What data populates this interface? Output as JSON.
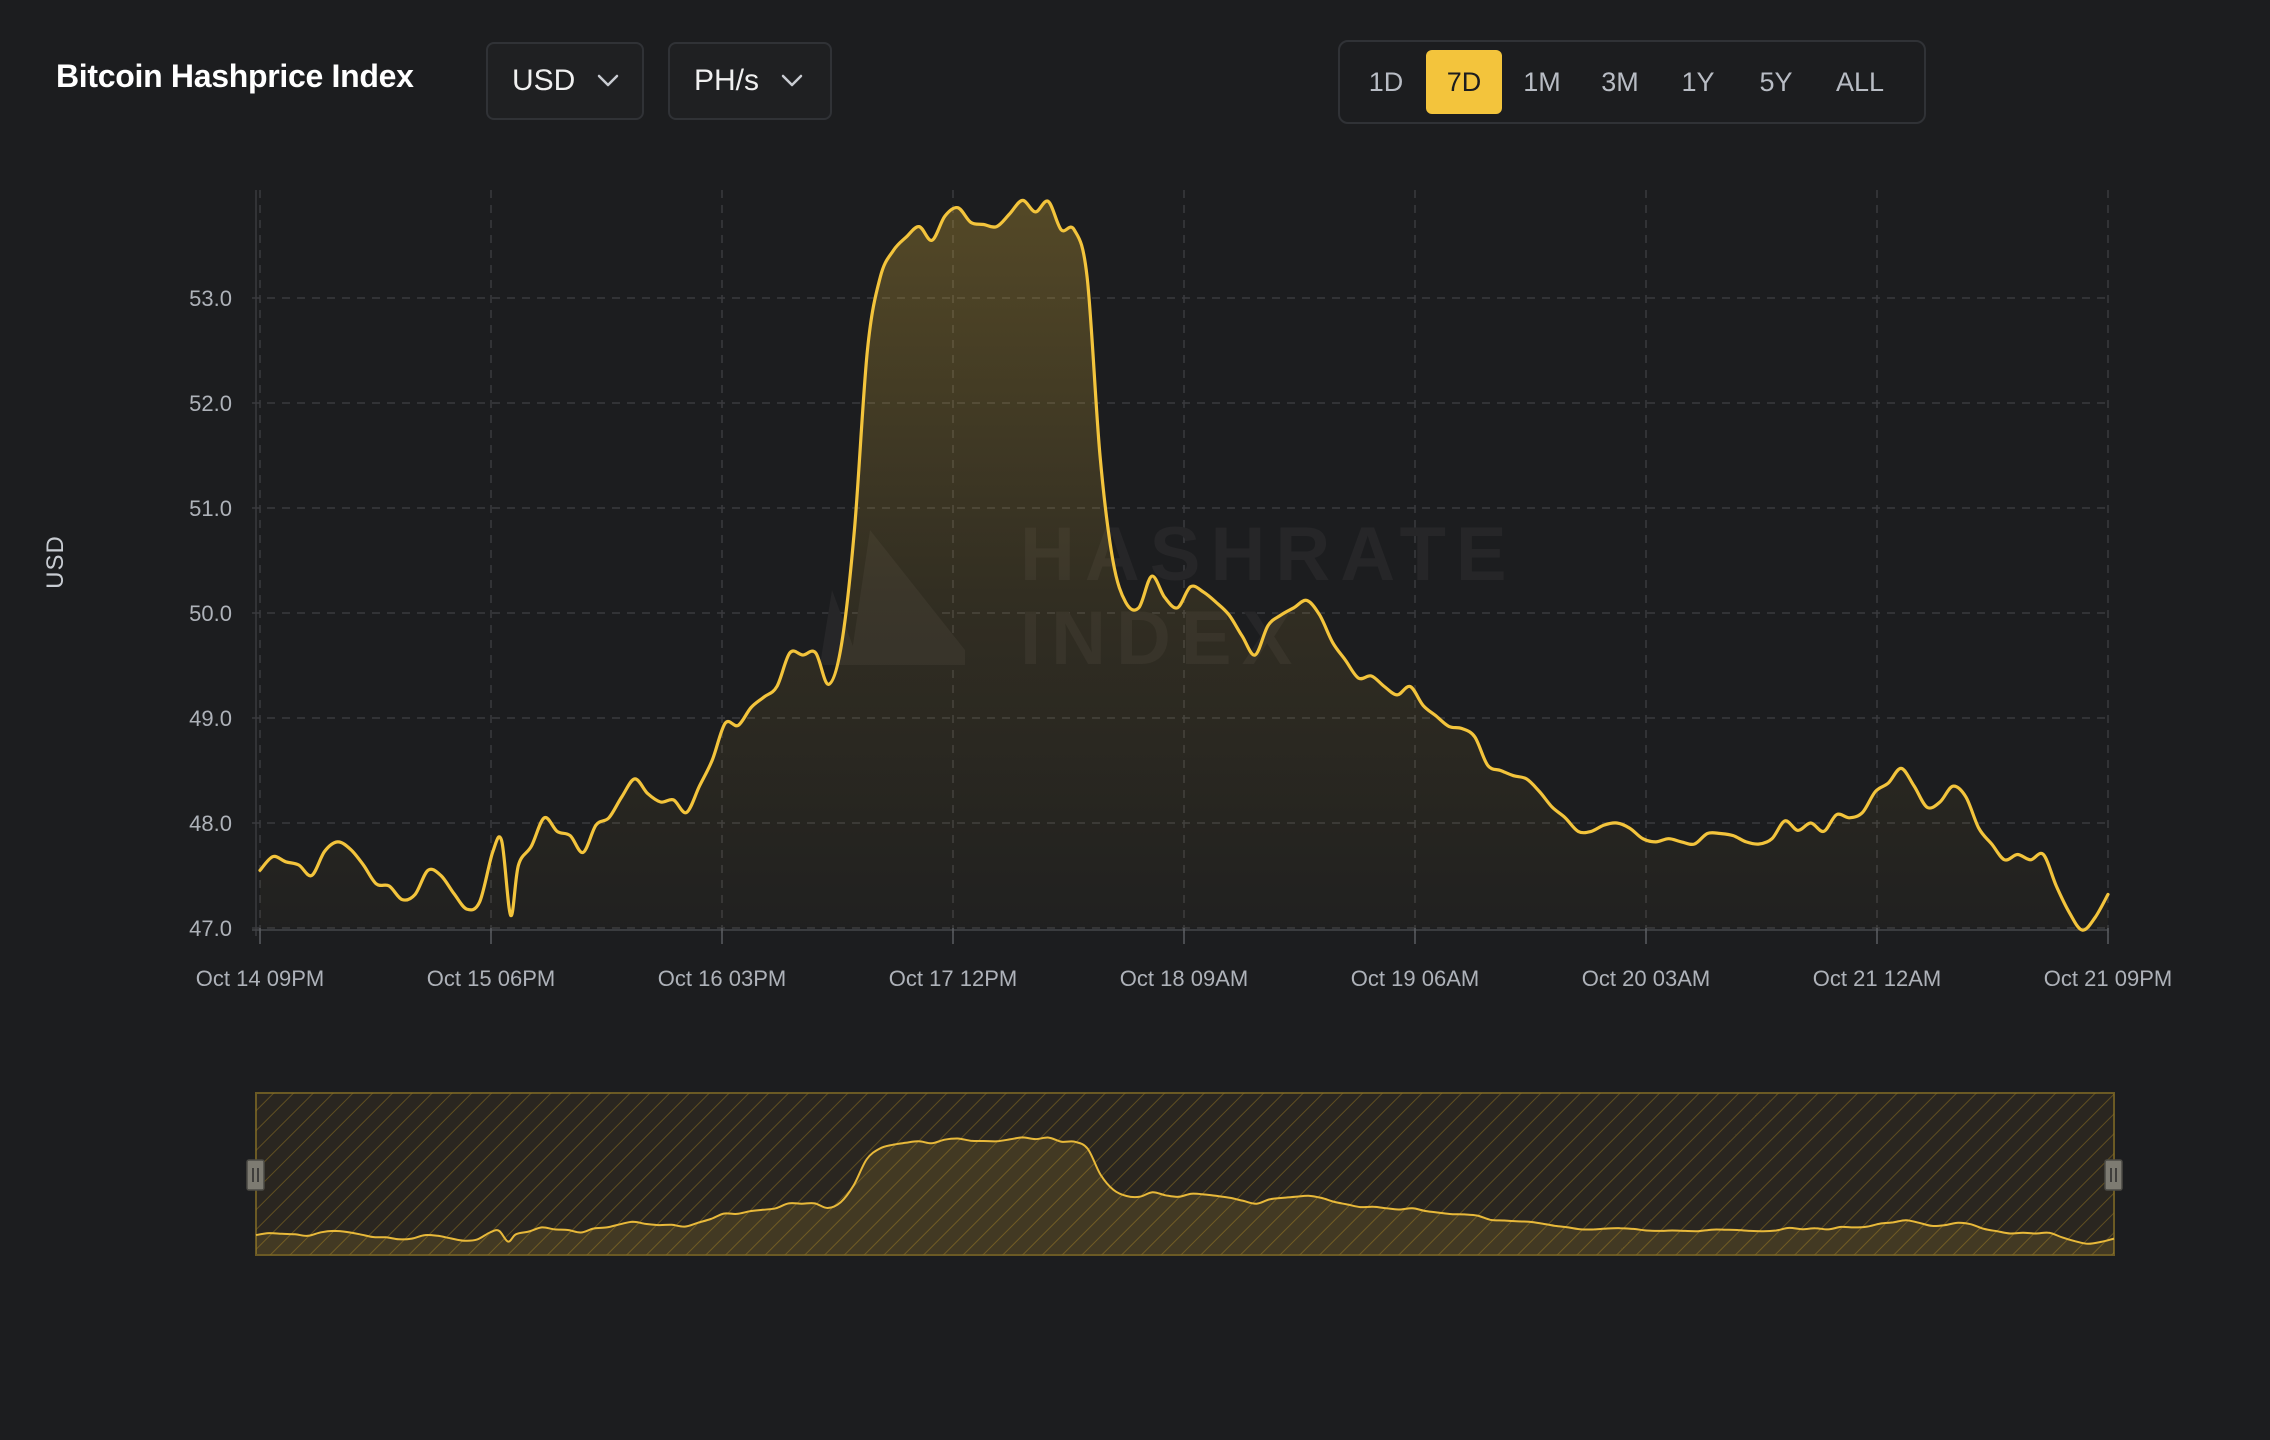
{
  "header": {
    "title": "Bitcoin Hashprice Index",
    "currency": "USD",
    "unit": "PH/s"
  },
  "ranges": [
    "1D",
    "7D",
    "1M",
    "3M",
    "1Y",
    "5Y",
    "ALL"
  ],
  "active_range": "7D",
  "watermark": {
    "line1": "HASHRATE",
    "line2": "INDEX"
  },
  "colors": {
    "background": "#1c1d1f",
    "line": "#f3c43c",
    "accent": "#f3c43c",
    "grid": "#3a3b3e"
  },
  "icons": {
    "dropdown": "chevron-down-icon",
    "handle": "drag-handle-icon"
  },
  "chart_data": {
    "type": "area",
    "ylabel": "USD",
    "ylim": [
      47.0,
      54.0
    ],
    "yticks": [
      "47.0",
      "48.0",
      "49.0",
      "50.0",
      "51.0",
      "52.0",
      "53.0"
    ],
    "xlim": [
      0,
      168
    ],
    "xticks": [
      {
        "x": 0,
        "label": "Oct 14 09PM"
      },
      {
        "x": 21,
        "label": "Oct 15 06PM"
      },
      {
        "x": 42,
        "label": "Oct 16 03PM"
      },
      {
        "x": 63,
        "label": "Oct 17 12PM"
      },
      {
        "x": 84,
        "label": "Oct 18 09AM"
      },
      {
        "x": 105,
        "label": "Oct 19 06AM"
      },
      {
        "x": 126,
        "label": "Oct 20 03AM"
      },
      {
        "x": 147,
        "label": "Oct 21 12AM"
      },
      {
        "x": 168,
        "label": "Oct 21 09PM"
      }
    ],
    "grid": true,
    "series": [
      {
        "values": [
          [
            0,
            47.55
          ],
          [
            1,
            47.68
          ],
          [
            2,
            47.63
          ],
          [
            3,
            47.6
          ],
          [
            4,
            47.5
          ],
          [
            5,
            47.73
          ],
          [
            6,
            47.82
          ],
          [
            7,
            47.75
          ],
          [
            8,
            47.6
          ],
          [
            9,
            47.42
          ],
          [
            10,
            47.4
          ],
          [
            11,
            47.27
          ],
          [
            12,
            47.32
          ],
          [
            13,
            47.55
          ],
          [
            14,
            47.5
          ],
          [
            15,
            47.33
          ],
          [
            16,
            47.18
          ],
          [
            17,
            47.25
          ],
          [
            18,
            47.72
          ],
          [
            18.7,
            47.83
          ],
          [
            19.4,
            47.12
          ],
          [
            20,
            47.6
          ],
          [
            21,
            47.78
          ],
          [
            22,
            48.05
          ],
          [
            23,
            47.92
          ],
          [
            24,
            47.88
          ],
          [
            25,
            47.72
          ],
          [
            26,
            47.98
          ],
          [
            27,
            48.05
          ],
          [
            28,
            48.25
          ],
          [
            29,
            48.42
          ],
          [
            30,
            48.28
          ],
          [
            31,
            48.2
          ],
          [
            32,
            48.22
          ],
          [
            33,
            48.1
          ],
          [
            34,
            48.35
          ],
          [
            35,
            48.6
          ],
          [
            36,
            48.95
          ],
          [
            37,
            48.93
          ],
          [
            38,
            49.1
          ],
          [
            39,
            49.2
          ],
          [
            40,
            49.3
          ],
          [
            41,
            49.62
          ],
          [
            42,
            49.6
          ],
          [
            43,
            49.62
          ],
          [
            44,
            49.32
          ],
          [
            45,
            49.7
          ],
          [
            46,
            50.8
          ],
          [
            47,
            52.5
          ],
          [
            48,
            53.2
          ],
          [
            49,
            53.45
          ],
          [
            50,
            53.58
          ],
          [
            51,
            53.68
          ],
          [
            52,
            53.55
          ],
          [
            53,
            53.78
          ],
          [
            54,
            53.86
          ],
          [
            55,
            53.72
          ],
          [
            56,
            53.7
          ],
          [
            57,
            53.68
          ],
          [
            58,
            53.8
          ],
          [
            59,
            53.93
          ],
          [
            60,
            53.82
          ],
          [
            61,
            53.92
          ],
          [
            62,
            53.65
          ],
          [
            63,
            53.65
          ],
          [
            64,
            53.2
          ],
          [
            65,
            51.5
          ],
          [
            66,
            50.5
          ],
          [
            67,
            50.1
          ],
          [
            68,
            50.05
          ],
          [
            69,
            50.35
          ],
          [
            70,
            50.15
          ],
          [
            71,
            50.05
          ],
          [
            72,
            50.25
          ],
          [
            73,
            50.2
          ],
          [
            74,
            50.1
          ],
          [
            75,
            49.98
          ],
          [
            76,
            49.78
          ],
          [
            77,
            49.6
          ],
          [
            78,
            49.88
          ],
          [
            79,
            49.98
          ],
          [
            80,
            50.05
          ],
          [
            81,
            50.12
          ],
          [
            82,
            49.98
          ],
          [
            83,
            49.72
          ],
          [
            84,
            49.55
          ],
          [
            85,
            49.38
          ],
          [
            86,
            49.4
          ],
          [
            87,
            49.3
          ],
          [
            88,
            49.22
          ],
          [
            89,
            49.3
          ],
          [
            90,
            49.12
          ],
          [
            91,
            49.02
          ],
          [
            92,
            48.92
          ],
          [
            93,
            48.9
          ],
          [
            94,
            48.82
          ],
          [
            95,
            48.55
          ],
          [
            96,
            48.5
          ],
          [
            97,
            48.45
          ],
          [
            98,
            48.42
          ],
          [
            99,
            48.3
          ],
          [
            100,
            48.15
          ],
          [
            101,
            48.05
          ],
          [
            102,
            47.92
          ],
          [
            103,
            47.92
          ],
          [
            104,
            47.98
          ],
          [
            105,
            48.0
          ],
          [
            106,
            47.95
          ],
          [
            107,
            47.85
          ],
          [
            108,
            47.82
          ],
          [
            109,
            47.85
          ],
          [
            110,
            47.82
          ],
          [
            111,
            47.8
          ],
          [
            112,
            47.9
          ],
          [
            113,
            47.9
          ],
          [
            114,
            47.88
          ],
          [
            115,
            47.82
          ],
          [
            116,
            47.8
          ],
          [
            117,
            47.85
          ],
          [
            118,
            48.02
          ],
          [
            119,
            47.93
          ],
          [
            120,
            48.0
          ],
          [
            121,
            47.92
          ],
          [
            122,
            48.08
          ],
          [
            123,
            48.05
          ],
          [
            124,
            48.1
          ],
          [
            125,
            48.3
          ],
          [
            126,
            48.38
          ],
          [
            127,
            48.52
          ],
          [
            128,
            48.35
          ],
          [
            129,
            48.15
          ],
          [
            130,
            48.2
          ],
          [
            131,
            48.35
          ],
          [
            132,
            48.25
          ],
          [
            133,
            47.95
          ],
          [
            134,
            47.8
          ],
          [
            135,
            47.65
          ],
          [
            136,
            47.7
          ],
          [
            137,
            47.65
          ],
          [
            138,
            47.7
          ],
          [
            139,
            47.4
          ],
          [
            140,
            47.15
          ],
          [
            141,
            46.98
          ],
          [
            142,
            47.1
          ],
          [
            143,
            47.32
          ]
        ]
      }
    ]
  }
}
